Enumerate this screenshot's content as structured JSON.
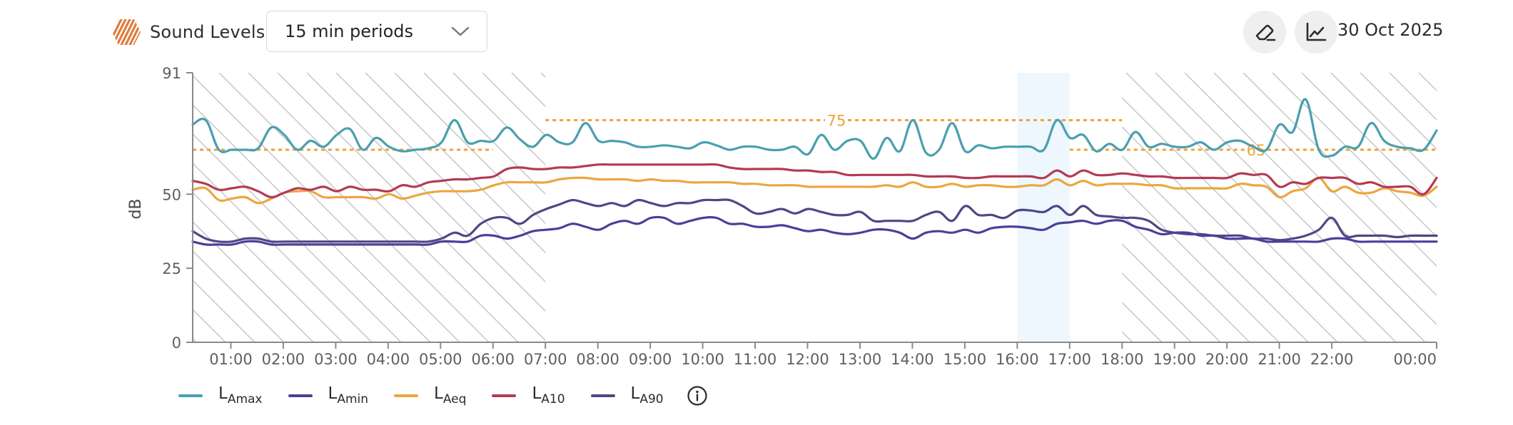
{
  "header": {
    "title": "Sound Levels",
    "title_icon": "hexagon-striped-icon",
    "period_select": {
      "value": "15 min periods",
      "icon": "chevron-down-icon"
    },
    "buttons": [
      {
        "name": "eraser-button",
        "icon": "eraser-icon"
      },
      {
        "name": "line-chart-button",
        "icon": "line-chart-icon"
      }
    ],
    "date": "30 Oct 2025"
  },
  "colors": {
    "LAmax": "#4a9faf",
    "LAmin": "#4b3f99",
    "LAeq": "#eba73f",
    "LA10": "#b33a55",
    "LA90": "#4e4787",
    "threshold": "#eca438",
    "highlight": "#eef6fe",
    "hatch": "#c4c4c4",
    "brand": "#e07b3f"
  },
  "legend": [
    {
      "key": "LAmax",
      "main": "L",
      "sub": "Amax"
    },
    {
      "key": "LAmin",
      "main": "L",
      "sub": "Amin"
    },
    {
      "key": "LAeq",
      "main": "L",
      "sub": "Aeq"
    },
    {
      "key": "LA10",
      "main": "L",
      "sub": "A10"
    },
    {
      "key": "LA90",
      "main": "L",
      "sub": "A90"
    }
  ],
  "legend_info_icon": "info-icon",
  "chart_data": {
    "type": "line",
    "title": "Sound Levels",
    "xlabel": "",
    "ylabel": "dB",
    "ylim": [
      0,
      91
    ],
    "yticks": [
      0,
      25,
      50,
      91
    ],
    "x_start": "00:15",
    "x_end": "00:00",
    "interval_minutes": 15,
    "xtick_labels": [
      "01:00",
      "02:00",
      "03:00",
      "04:00",
      "05:00",
      "06:00",
      "07:00",
      "08:00",
      "09:00",
      "10:00",
      "11:00",
      "12:00",
      "13:00",
      "14:00",
      "15:00",
      "16:00",
      "17:00",
      "18:00",
      "19:00",
      "20:00",
      "21:00",
      "22:00",
      "00:00"
    ],
    "grid": false,
    "legend_position": "bottom-left",
    "night_hatched_periods": [
      [
        "00:15",
        "07:00"
      ],
      [
        "18:00",
        "00:00"
      ]
    ],
    "highlighted_period": [
      "16:00",
      "17:00"
    ],
    "thresholds": [
      {
        "value": 65,
        "from": "00:15",
        "to": "06:00",
        "label": ""
      },
      {
        "value": 75,
        "from": "07:00",
        "to": "18:00",
        "label": "75"
      },
      {
        "value": 65,
        "from": "17:00",
        "to": "00:00",
        "label": "65"
      }
    ],
    "series": [
      {
        "name": "LAmax",
        "values": [
          73.5,
          75,
          65,
          65,
          65,
          65.5,
          72.5,
          70,
          65,
          68,
          66,
          70,
          72,
          65,
          69,
          66,
          64.5,
          65,
          65.5,
          67.5,
          75,
          67.5,
          68,
          68,
          72.5,
          68.5,
          66,
          70,
          67.5,
          67.5,
          74,
          68,
          68,
          67.5,
          66,
          66,
          66.5,
          66,
          65.5,
          67.5,
          66.5,
          65,
          66,
          66,
          65,
          65,
          66,
          63.5,
          70,
          65,
          68,
          68,
          62,
          69,
          64.5,
          75,
          64,
          65,
          74,
          64.5,
          66.5,
          65.5,
          66,
          66,
          66,
          65,
          75,
          69,
          70,
          64.5,
          67,
          65,
          71,
          66,
          67,
          66,
          66,
          67.5,
          65,
          67.5,
          68,
          66,
          65,
          73.5,
          71,
          82,
          65,
          63,
          66,
          66,
          74,
          68,
          66,
          65.5,
          65,
          71.5
        ]
      },
      {
        "name": "LA10",
        "values": [
          54.5,
          53.5,
          51.5,
          52,
          52.5,
          51,
          49,
          50.5,
          52,
          51.5,
          52.5,
          51,
          52.5,
          51.5,
          51.5,
          51,
          53,
          52.5,
          54,
          54.5,
          55,
          55,
          55.5,
          56,
          58.5,
          59,
          58.5,
          58.5,
          59,
          59,
          59.5,
          60,
          60,
          60,
          60,
          60,
          60,
          60,
          60,
          60,
          60,
          59,
          58.5,
          58.5,
          58.5,
          58.5,
          58,
          58,
          57.5,
          57.5,
          56.5,
          56.5,
          56.5,
          56.5,
          56.5,
          56.5,
          56,
          56,
          56,
          55.5,
          55.5,
          56,
          56,
          56,
          56,
          55.5,
          58,
          56,
          58,
          56.5,
          56.5,
          57,
          56.5,
          56,
          56,
          55.5,
          55.5,
          55.5,
          55.5,
          55.5,
          57,
          56.5,
          56.5,
          52.5,
          54,
          53.5,
          55.5,
          55.5,
          55.5,
          53.5,
          54,
          52.5,
          52.5,
          52.5,
          50,
          55.5
        ]
      },
      {
        "name": "LAeq",
        "values": [
          51.5,
          52,
          48,
          48.5,
          49,
          47,
          48.5,
          50.5,
          51,
          51,
          49,
          49,
          49,
          49,
          48.5,
          50,
          48.5,
          49.5,
          50.5,
          51,
          51,
          51,
          51.5,
          53,
          54,
          54,
          54,
          54,
          55,
          55.5,
          55.5,
          55,
          55,
          55,
          54.5,
          55,
          54.5,
          54.5,
          54,
          54,
          54,
          54,
          53.5,
          53.5,
          53,
          53,
          53,
          52.5,
          52.5,
          52.5,
          52.5,
          52.5,
          52.5,
          53,
          52.5,
          54,
          52.5,
          52.5,
          53.5,
          52.5,
          53,
          53,
          52.5,
          52.5,
          53,
          53,
          55,
          53,
          54.5,
          53,
          53.5,
          53.5,
          53.5,
          53,
          53,
          52,
          52,
          52,
          52,
          52,
          53.5,
          53,
          52.5,
          49,
          51,
          52,
          55.5,
          51,
          52.5,
          50.5,
          50.5,
          52,
          51,
          50.5,
          49.5,
          52.5
        ]
      },
      {
        "name": "LA90",
        "values": [
          37.5,
          35,
          34,
          34,
          35,
          35,
          34,
          34,
          34,
          34,
          34,
          34,
          34,
          34,
          34,
          34,
          34,
          34,
          34,
          35,
          37,
          36,
          40,
          42,
          42,
          40,
          43,
          45,
          46.5,
          48,
          47,
          46,
          47,
          46,
          48,
          47,
          46,
          47,
          47,
          48,
          48,
          48,
          46,
          43.5,
          44,
          45,
          43.5,
          45,
          44,
          43,
          43,
          44,
          41,
          41,
          41,
          41,
          43,
          44,
          41,
          46,
          43,
          43,
          42,
          44.5,
          44.5,
          44,
          46,
          43,
          46,
          43,
          42.5,
          42,
          42,
          41,
          38,
          37,
          36.5,
          36.5,
          36,
          36,
          36,
          35,
          35,
          34.5,
          35,
          36,
          38,
          42,
          36,
          36,
          36,
          36,
          35.5,
          36,
          36,
          36
        ]
      },
      {
        "name": "LAmin",
        "values": [
          34,
          33,
          33,
          33,
          34,
          34,
          33,
          33,
          33,
          33,
          33,
          33,
          33,
          33,
          33,
          33,
          33,
          33,
          33,
          34,
          34,
          34,
          36,
          36,
          35,
          36,
          37.5,
          38,
          38.5,
          40,
          39,
          38,
          40,
          41,
          40,
          42,
          42,
          40,
          41,
          42,
          42,
          40,
          40,
          39,
          39,
          39.5,
          38.5,
          37.5,
          38,
          37,
          36.5,
          37,
          38,
          38,
          37,
          35,
          37,
          37.5,
          37,
          38,
          37,
          38.5,
          39,
          39,
          38.5,
          38,
          40,
          40.5,
          41,
          40,
          41,
          41,
          39,
          38,
          36.5,
          37,
          37,
          36,
          36,
          35,
          35,
          35,
          34,
          34,
          34,
          34,
          34,
          35,
          35,
          34,
          34,
          34,
          34,
          34,
          34,
          34
        ]
      }
    ]
  }
}
